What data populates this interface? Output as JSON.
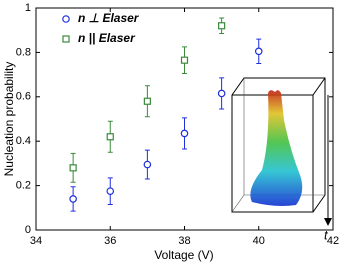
{
  "chart_data": {
    "type": "scatter",
    "x_label": "Voltage (V)",
    "y_label": "Nucleation probability",
    "xlim": [
      34,
      42
    ],
    "xticks": [
      34,
      36,
      38,
      40,
      42
    ],
    "ylim": [
      0,
      1
    ],
    "yticks": [
      0,
      0.2,
      0.4,
      0.6,
      0.8,
      1
    ],
    "legend": "upper-left",
    "series": [
      {
        "name": "n ⊥ Elaser",
        "color": "#1f2fe0",
        "marker": "circle",
        "x": [
          35,
          36,
          37,
          38,
          39,
          40
        ],
        "values": [
          0.14,
          0.175,
          0.295,
          0.435,
          0.615,
          0.805
        ],
        "errors": [
          0.055,
          0.06,
          0.065,
          0.07,
          0.07,
          0.055
        ]
      },
      {
        "name": "n || Elaser",
        "color": "#3a8a3a",
        "marker": "square",
        "x": [
          35,
          36,
          37,
          38,
          39
        ],
        "values": [
          0.28,
          0.42,
          0.58,
          0.765,
          0.92
        ],
        "errors": [
          0.065,
          0.07,
          0.07,
          0.06,
          0.035
        ]
      }
    ],
    "inset_label": "t"
  }
}
